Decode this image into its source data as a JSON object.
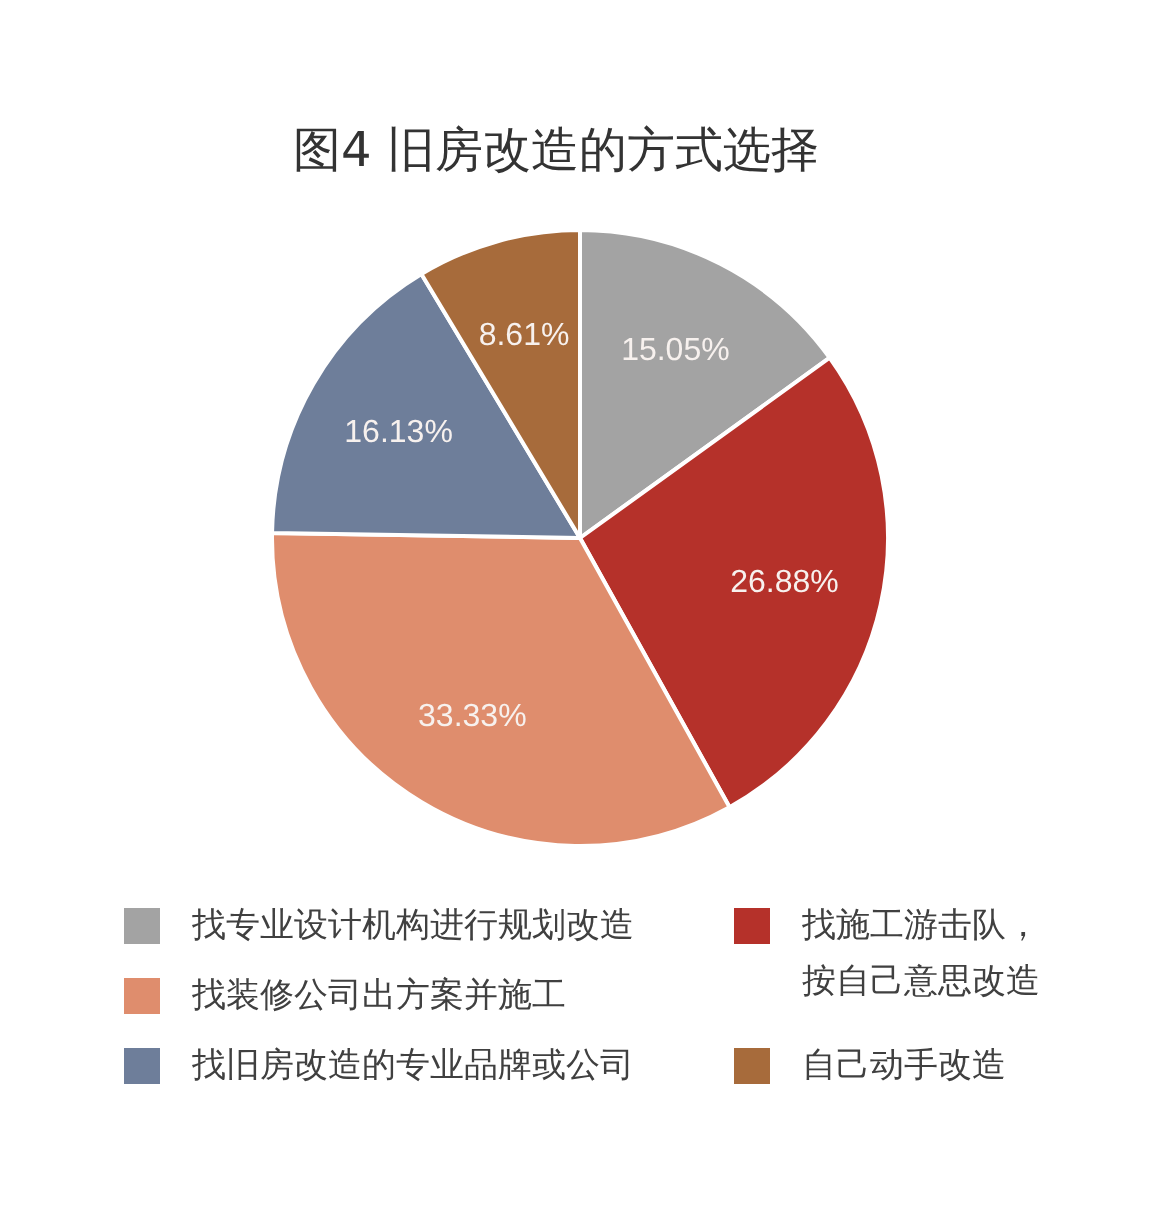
{
  "chart_data": {
    "type": "pie",
    "title": "图4 旧房改造的方式选择",
    "categories": [
      "找专业设计机构进行规划改造",
      "找施工游击队，按自己意思改造",
      "找装修公司出方案并施工",
      "找旧房改造的专业品牌或公司",
      "自己动手改造"
    ],
    "values": [
      15.05,
      26.88,
      33.33,
      16.13,
      8.61
    ],
    "colors": [
      "#a3a3a3",
      "#b5312a",
      "#df8d6d",
      "#6e7e9a",
      "#a76b3b"
    ],
    "value_labels": [
      "15.05%",
      "26.88%",
      "33.33%",
      "16.13%",
      "8.61%"
    ],
    "legend": "bottom"
  }
}
